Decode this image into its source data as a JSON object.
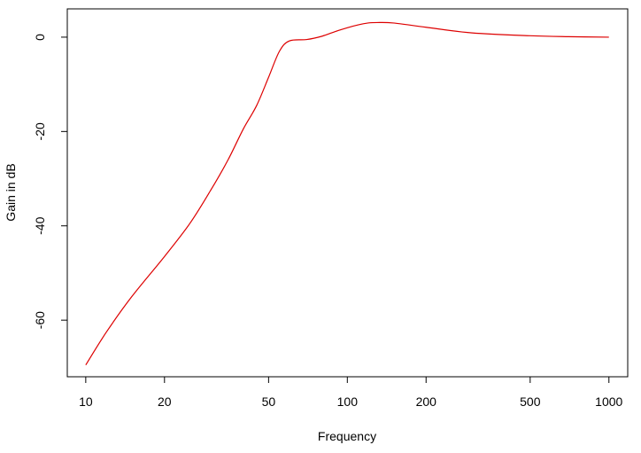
{
  "chart_data": {
    "type": "line",
    "title": "",
    "xlabel": "Frequency",
    "ylabel": "Gain in dB",
    "xscale": "log",
    "xlim": [
      8.5,
      1180
    ],
    "ylim": [
      -72,
      6
    ],
    "grid": false,
    "xticks": [
      10,
      20,
      50,
      100,
      200,
      500,
      1000
    ],
    "xtick_labels": [
      "10",
      "20",
      "50",
      "100",
      "200",
      "500",
      "1000"
    ],
    "yticks": [
      0,
      -20,
      -40,
      -60
    ],
    "ytick_labels": [
      "0",
      "-20",
      "-40",
      "-60"
    ],
    "series": [
      {
        "color": "#dd0000",
        "x": [
          10,
          12,
          15,
          20,
          25,
          30,
          35,
          40,
          45,
          50,
          55,
          60,
          70,
          80,
          90,
          100,
          110,
          120,
          130,
          150,
          200,
          300,
          500,
          700,
          1000
        ],
        "y": [
          -69.5,
          -62.5,
          -55,
          -46.5,
          -39.5,
          -32.5,
          -26,
          -19.5,
          -14.5,
          -8.5,
          -3,
          -0.8,
          -0.5,
          0.2,
          1.2,
          2.0,
          2.6,
          3.0,
          3.1,
          3.0,
          2.1,
          0.9,
          0.3,
          0.1,
          0.0
        ]
      }
    ]
  }
}
